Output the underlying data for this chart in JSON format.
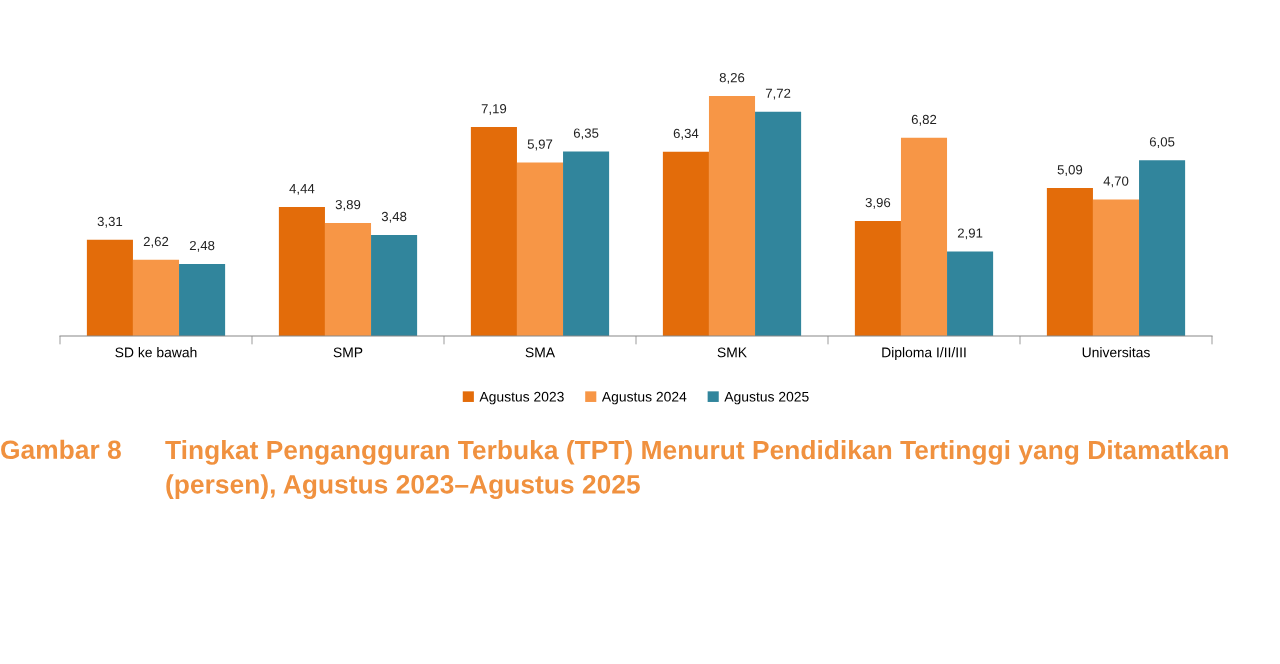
{
  "chart_data": {
    "type": "bar",
    "title": "Gambar 8",
    "subtitle": "Tingkat Pengangguran Terbuka (TPT) Menurut Pendidikan Tertinggi yang Ditamatkan (persen), Agustus 2023–Agustus 2025",
    "categories": [
      "SD ke bawah",
      "SMP",
      "SMA",
      "SMK",
      "Diploma I/II/III",
      "Universitas"
    ],
    "series": [
      {
        "name": "Agustus 2023",
        "color": "#e36c0a",
        "values": [
          3.31,
          4.44,
          7.19,
          6.34,
          3.96,
          5.09
        ],
        "value_labels": [
          "3,31",
          "4,44",
          "7,19",
          "6,34",
          "3,96",
          "5,09"
        ]
      },
      {
        "name": "Agustus 2024",
        "color": "#f79646",
        "values": [
          2.62,
          3.89,
          5.97,
          8.26,
          6.82,
          4.7
        ],
        "value_labels": [
          "2,62",
          "3,89",
          "5,97",
          "8,26",
          "6,82",
          "4,70"
        ]
      },
      {
        "name": "Agustus 2025",
        "color": "#31859c",
        "values": [
          2.48,
          3.48,
          6.35,
          7.72,
          2.91,
          6.05
        ],
        "value_labels": [
          "2,48",
          "3,48",
          "6,35",
          "7,72",
          "2,91",
          "6,05"
        ]
      }
    ],
    "legend": "bottom",
    "grid": false
  }
}
